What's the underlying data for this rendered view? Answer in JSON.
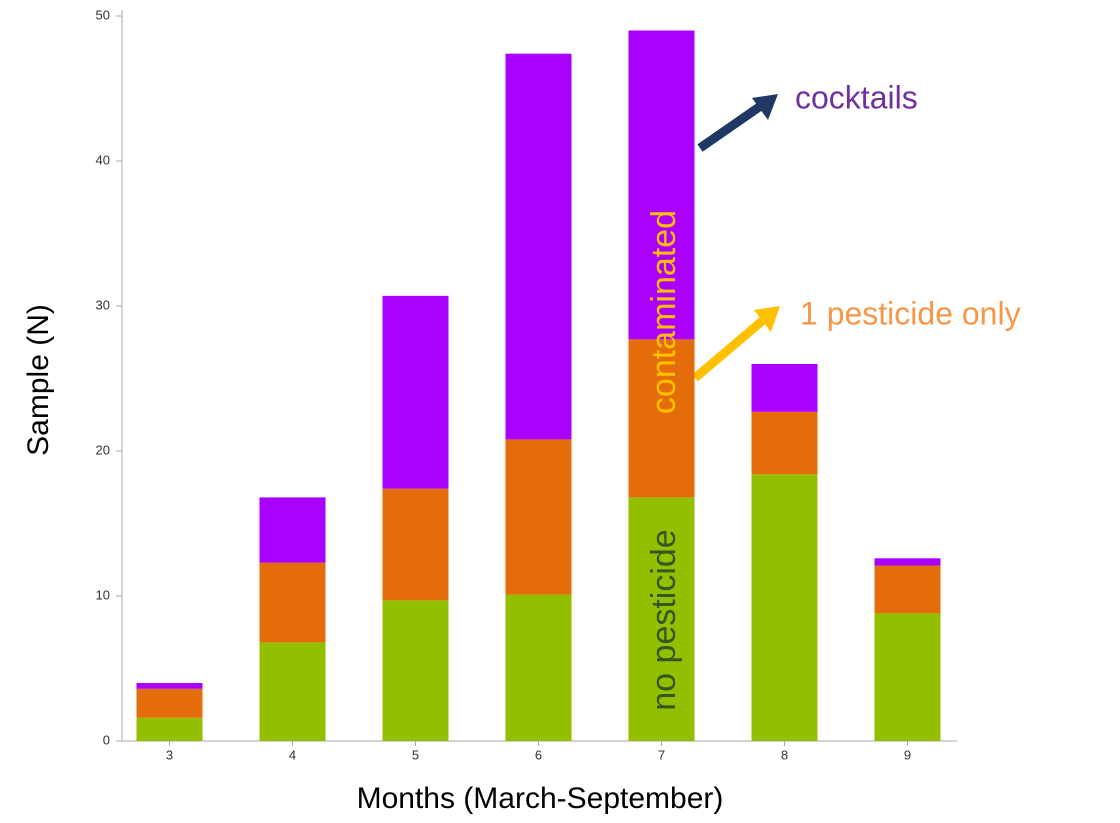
{
  "chart_data": {
    "type": "stacked_bar",
    "x_label": "Months (March-September)",
    "y_label": "Sample (N)",
    "categories": [
      "3",
      "4",
      "5",
      "6",
      "7",
      "8",
      "9"
    ],
    "series": [
      {
        "name": "no pesticide",
        "color": "#92c000",
        "values": [
          1.6,
          6.8,
          9.7,
          10.1,
          16.8,
          18.4,
          8.8
        ]
      },
      {
        "name": "1 pesticide only",
        "color": "#e46c0a",
        "values": [
          2.0,
          5.5,
          7.7,
          10.7,
          10.9,
          4.3,
          3.3
        ]
      },
      {
        "name": "cocktails",
        "color": "#aa00ff",
        "values": [
          0.4,
          4.5,
          13.3,
          26.6,
          21.3,
          3.3,
          0.5
        ]
      }
    ],
    "annotations": [
      "contaminated"
    ],
    "ylim": [
      0,
      50
    ],
    "yticks": [
      0,
      10,
      20,
      30,
      40,
      50
    ],
    "grid": false
  }
}
